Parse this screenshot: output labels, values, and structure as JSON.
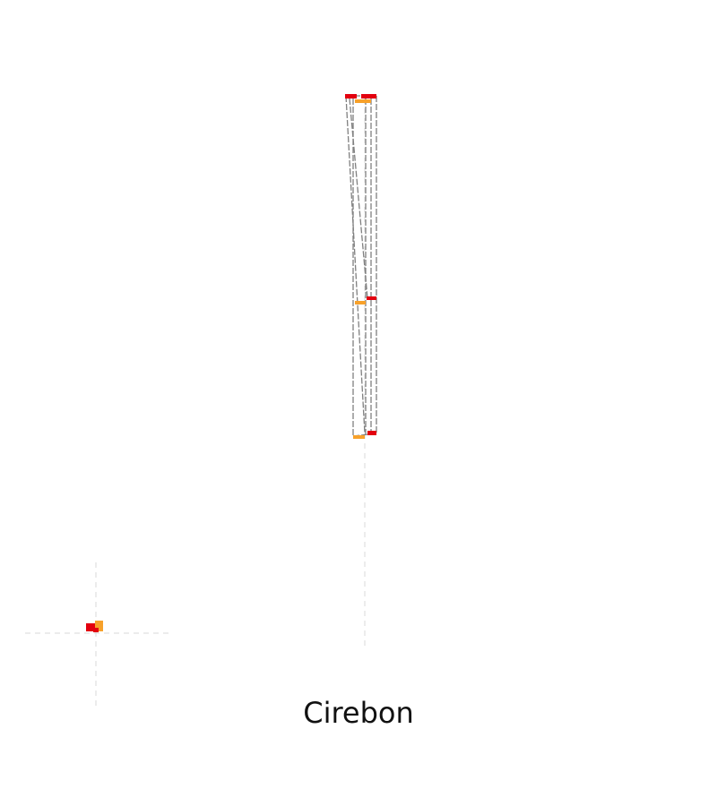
{
  "caption": "Cirebon",
  "colors": {
    "guide": "#d8d8d8",
    "edge": "#808080",
    "node_primary": "#e3000f",
    "node_secondary": "#f7a12a"
  }
}
